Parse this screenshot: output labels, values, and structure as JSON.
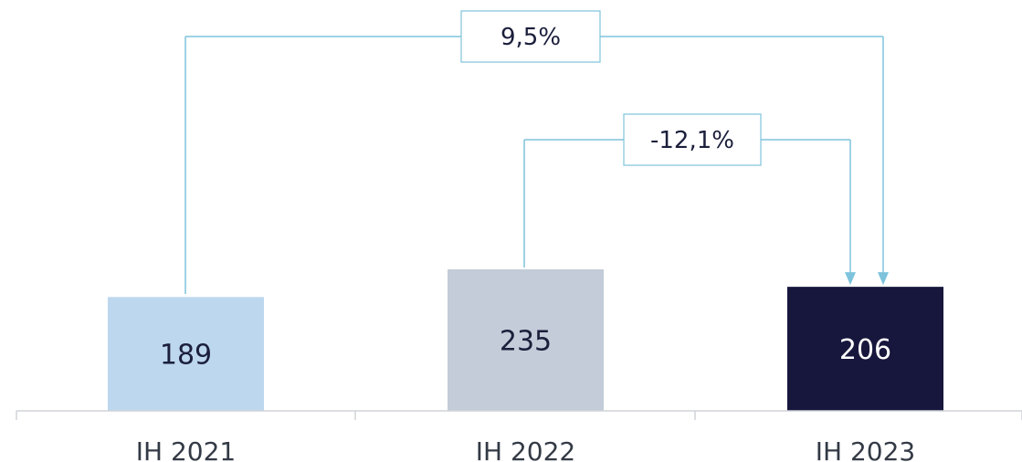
{
  "chart_data": {
    "type": "bar",
    "categories": [
      "IH 2021",
      "IH 2022",
      "IH 2023"
    ],
    "values": [
      189,
      235,
      206
    ],
    "data_labels": [
      "189",
      "235",
      "206"
    ],
    "bar_colors": [
      "#bdd7ee",
      "#c3ccd8",
      "#17173d"
    ],
    "label_colors": [
      "#1b1f3b",
      "#1b1f3b",
      "#ffffff"
    ],
    "annotation_color": "#7ec3dc",
    "axis_color": "#d0d3d8",
    "title": "",
    "xlabel": "",
    "ylabel": "",
    "grid": false,
    "annotations": [
      {
        "from": "IH 2021",
        "to": "IH 2023",
        "text": "9,5%"
      },
      {
        "from": "IH 2022",
        "to": "IH 2023",
        "text": "-12,1%"
      }
    ]
  }
}
